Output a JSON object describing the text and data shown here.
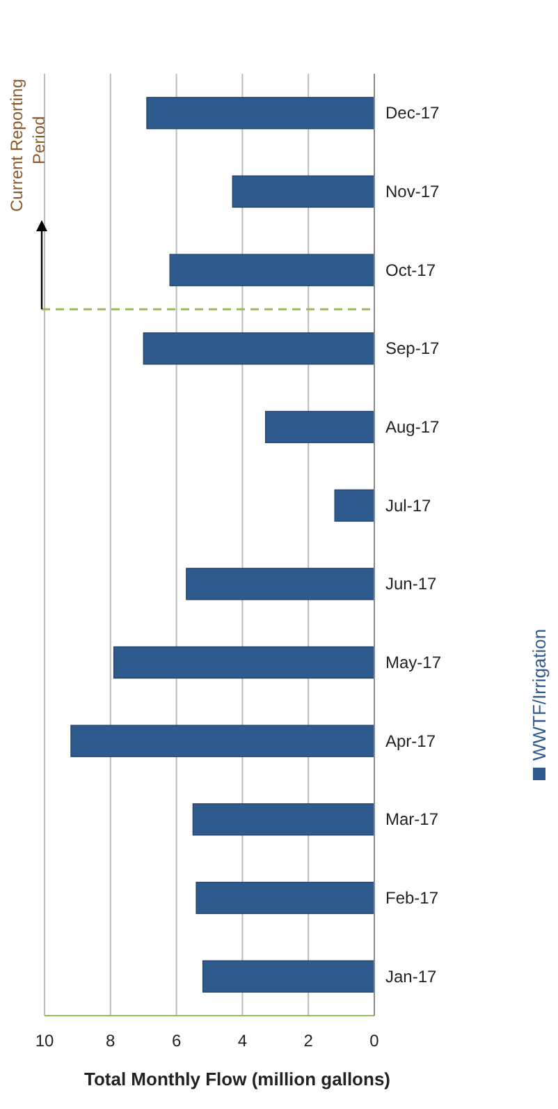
{
  "chart_data": {
    "type": "bar",
    "orientation": "horizontal",
    "xlabel": "Total Monthly Flow (million gallons)",
    "categories": [
      "Dec-17",
      "Nov-17",
      "Oct-17",
      "Sep-17",
      "Aug-17",
      "Jul-17",
      "Jun-17",
      "May-17",
      "Apr-17",
      "Mar-17",
      "Feb-17",
      "Jan-17"
    ],
    "series": [
      {
        "name": "WWTF/Irrigation",
        "color": "#2f5a8e",
        "values": [
          6.9,
          4.3,
          6.2,
          7.0,
          3.3,
          1.2,
          5.7,
          7.9,
          9.2,
          5.5,
          5.4,
          5.2
        ]
      }
    ],
    "xlim": [
      10,
      0
    ],
    "xticks": [
      10,
      8,
      6,
      4,
      2,
      0
    ],
    "grid": "x",
    "legend": "right",
    "ref_lines": [
      {
        "axis": "y",
        "value": "Oct-17",
        "label": "Current Reporting Period",
        "color": "#9bbb59",
        "line_style": "dashed"
      }
    ]
  }
}
